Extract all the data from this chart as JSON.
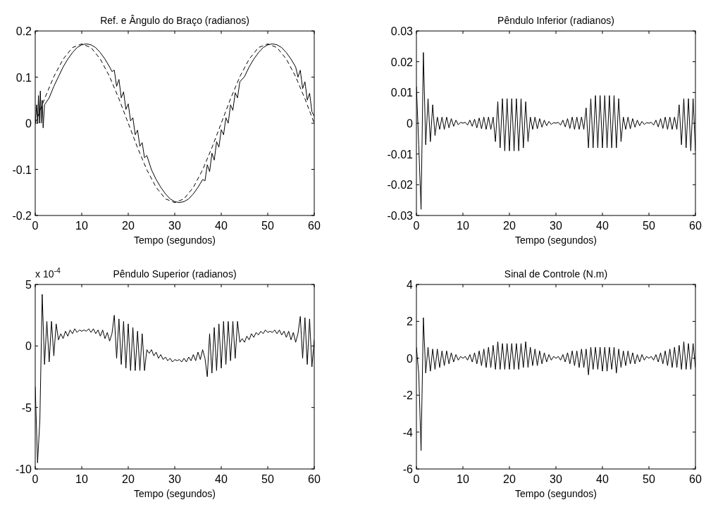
{
  "chart_data": [
    {
      "type": "line",
      "title": "Ref. e Ângulo do Braço (radianos)",
      "xlabel": "Tempo (segundos)",
      "xlim": [
        0,
        60
      ],
      "xticks": [
        0,
        10,
        20,
        30,
        40,
        50,
        60
      ],
      "ylim": [
        -0.2,
        0.2
      ],
      "yticks": [
        -0.2,
        -0.1,
        0,
        0.1,
        0.2
      ],
      "series": [
        {
          "color": "#000000",
          "line_style": "dashed",
          "x": [
            0,
            2,
            4,
            6,
            8,
            10,
            12,
            14,
            16,
            18,
            20,
            22,
            24,
            26,
            28,
            30,
            32,
            34,
            36,
            38,
            40,
            42,
            44,
            46,
            48,
            50,
            52,
            54,
            56,
            58,
            60
          ],
          "values": [
            0,
            0.053,
            0.101,
            0.139,
            0.164,
            0.172,
            0.164,
            0.139,
            0.101,
            0.053,
            0,
            -0.053,
            -0.101,
            -0.139,
            -0.164,
            -0.172,
            -0.164,
            -0.139,
            -0.101,
            -0.053,
            0,
            0.053,
            0.101,
            0.139,
            0.164,
            0.172,
            0.164,
            0.139,
            0.101,
            0.053,
            0
          ]
        },
        {
          "color": "#000000",
          "x": [
            0,
            0.3,
            0.5,
            0.7,
            0.9,
            1.1,
            1.3,
            1.5,
            1.7,
            2,
            3,
            4,
            5,
            6,
            7,
            8,
            9,
            10,
            11,
            12,
            13,
            14,
            15,
            16,
            16.5,
            17,
            17.5,
            18,
            18.5,
            19,
            19.5,
            20,
            20.5,
            21,
            21.5,
            22,
            22.5,
            23,
            23.5,
            24,
            25,
            26,
            27,
            28,
            29,
            30,
            31,
            32,
            33,
            34,
            35,
            36,
            36.5,
            37,
            37.5,
            38,
            38.5,
            39,
            39.5,
            40,
            40.5,
            41,
            41.5,
            42,
            42.5,
            43,
            43.5,
            44,
            45,
            46,
            47,
            48,
            49,
            50,
            51,
            52,
            53,
            54,
            55,
            56,
            56.5,
            57,
            57.5,
            58,
            58.5,
            59,
            59.5,
            60
          ],
          "values": [
            0,
            0.04,
            0,
            0.06,
            0,
            0.07,
            0,
            0.05,
            -0.01,
            0.04,
            0.055,
            0.08,
            0.101,
            0.122,
            0.139,
            0.153,
            0.164,
            0.17,
            0.172,
            0.17,
            0.164,
            0.153,
            0.139,
            0.122,
            0.112,
            0.115,
            0.08,
            0.095,
            0.055,
            0.068,
            0.03,
            0.042,
            0.005,
            0.012,
            -0.025,
            -0.015,
            -0.05,
            -0.042,
            -0.075,
            -0.07,
            -0.101,
            -0.122,
            -0.139,
            -0.153,
            -0.164,
            -0.17,
            -0.172,
            -0.17,
            -0.164,
            -0.153,
            -0.139,
            -0.122,
            -0.125,
            -0.09,
            -0.105,
            -0.065,
            -0.08,
            -0.04,
            -0.052,
            -0.014,
            -0.025,
            0.012,
            0,
            0.04,
            0.028,
            0.066,
            0.055,
            0.09,
            0.101,
            0.122,
            0.139,
            0.153,
            0.164,
            0.17,
            0.172,
            0.17,
            0.164,
            0.153,
            0.139,
            0.122,
            0.1,
            0.115,
            0.075,
            0.09,
            0.05,
            0.065,
            0.025,
            0.015
          ]
        }
      ]
    },
    {
      "type": "line",
      "title": "Pêndulo Inferior (radianos)",
      "xlabel": "Tempo (segundos)",
      "xlim": [
        0,
        60
      ],
      "xticks": [
        0,
        10,
        20,
        30,
        40,
        50,
        60
      ],
      "ylim": [
        -0.03,
        0.03
      ],
      "yticks": [
        -0.03,
        -0.02,
        -0.01,
        0,
        0.01,
        0.02,
        0.03
      ],
      "x": [
        0,
        0.5,
        1,
        1.5,
        2,
        2.5,
        3,
        3.5,
        4,
        4.5,
        5,
        5.5,
        6,
        6.5,
        7,
        7.5,
        8,
        8.5,
        9,
        9.5,
        10,
        10.5,
        11,
        11.5,
        12,
        12.5,
        13,
        13.5,
        14,
        14.5,
        15,
        15.5,
        16,
        16.5,
        17,
        17.5,
        18,
        18.5,
        19,
        19.5,
        20,
        20.5,
        21,
        21.5,
        22,
        22.5,
        23,
        23.5,
        24,
        24.5,
        25,
        25.5,
        26,
        26.5,
        27,
        27.5,
        28,
        28.5,
        29,
        29.5,
        30,
        30.5,
        31,
        31.5,
        32,
        32.5,
        33,
        33.5,
        34,
        34.5,
        35,
        35.5,
        36,
        36.5,
        37,
        37.5,
        38,
        38.5,
        39,
        39.5,
        40,
        40.5,
        41,
        41.5,
        42,
        42.5,
        43,
        43.5,
        44,
        44.5,
        45,
        45.5,
        46,
        46.5,
        47,
        47.5,
        48,
        48.5,
        49,
        49.5,
        50,
        50.5,
        51,
        51.5,
        52,
        52.5,
        53,
        53.5,
        54,
        54.5,
        55,
        55.5,
        56,
        56.5,
        57,
        57.5,
        58,
        58.5,
        59,
        59.5,
        60
      ],
      "series": [
        {
          "color": "#000000",
          "values": [
            0.012,
            -0.007,
            -0.028,
            0.023,
            -0.007,
            0.008,
            -0.006,
            0.006,
            -0.004,
            0.002,
            -0.002,
            0.002,
            -0.002,
            0.002,
            -0.0015,
            0.0015,
            -0.001,
            0.001,
            -0.0005,
            0.0003,
            0,
            0.0003,
            -0.0006,
            0.001,
            -0.001,
            0.0013,
            -0.0015,
            0.0017,
            -0.0018,
            0.002,
            -0.002,
            0.002,
            -0.002,
            0.002,
            -0.006,
            0.007,
            -0.008,
            0.008,
            -0.009,
            0.008,
            -0.009,
            0.008,
            -0.009,
            0.008,
            -0.009,
            0.008,
            -0.008,
            0.007,
            -0.006,
            0.002,
            -0.002,
            0.002,
            -0.0018,
            0.0015,
            -0.0013,
            0.001,
            -0.0008,
            0.0006,
            -0.0004,
            0.0002,
            0,
            0.0003,
            -0.0006,
            0.001,
            -0.0012,
            0.0015,
            -0.0017,
            0.002,
            -0.002,
            0.002,
            -0.002,
            0.002,
            -0.002,
            0.005,
            -0.008,
            0.008,
            -0.008,
            0.009,
            -0.008,
            0.009,
            -0.008,
            0.009,
            -0.008,
            0.009,
            -0.008,
            0.009,
            -0.008,
            0.008,
            -0.006,
            0.002,
            -0.002,
            0.002,
            -0.0018,
            0.0015,
            -0.0013,
            0.001,
            -0.0008,
            0.0006,
            -0.0004,
            0.0002,
            0,
            0.0003,
            -0.0006,
            0.001,
            -0.0012,
            0.0015,
            -0.0017,
            0.002,
            -0.002,
            0.002,
            -0.002,
            0.002,
            -0.002,
            0.006,
            -0.007,
            0.008,
            -0.008,
            0.008,
            -0.009,
            0.008,
            -0.009
          ]
        }
      ]
    },
    {
      "type": "line",
      "title": "Pêndulo Superior (radianos)",
      "xlabel": "Tempo (segundos)",
      "annotations": [
        "x 10$^{-4}$"
      ],
      "xlim": [
        0,
        60
      ],
      "xticks": [
        0,
        10,
        20,
        30,
        40,
        50,
        60
      ],
      "ylim": [
        -10,
        5
      ],
      "yticks": [
        -10,
        -5,
        0,
        5
      ],
      "x": [
        0,
        0.5,
        1,
        1.5,
        2,
        2.5,
        3,
        3.5,
        4,
        4.5,
        5,
        5.5,
        6,
        6.5,
        7,
        7.5,
        8,
        8.5,
        9,
        9.5,
        10,
        10.5,
        11,
        11.5,
        12,
        12.5,
        13,
        13.5,
        14,
        14.5,
        15,
        15.5,
        16,
        16.5,
        17,
        17.5,
        18,
        18.5,
        19,
        19.5,
        20,
        20.5,
        21,
        21.5,
        22,
        22.5,
        23,
        23.5,
        24,
        24.5,
        25,
        25.5,
        26,
        26.5,
        27,
        27.5,
        28,
        28.5,
        29,
        29.5,
        30,
        30.5,
        31,
        31.5,
        32,
        32.5,
        33,
        33.5,
        34,
        34.5,
        35,
        35.5,
        36,
        36.5,
        37,
        37.5,
        38,
        38.5,
        39,
        39.5,
        40,
        40.5,
        41,
        41.5,
        42,
        42.5,
        43,
        43.5,
        44,
        44.5,
        45,
        45.5,
        46,
        46.5,
        47,
        47.5,
        48,
        48.5,
        49,
        49.5,
        50,
        50.5,
        51,
        51.5,
        52,
        52.5,
        53,
        53.5,
        54,
        54.5,
        55,
        55.5,
        56,
        56.5,
        57,
        57.5,
        58,
        58.5,
        59,
        59.5,
        60
      ],
      "series": [
        {
          "color": "#000000",
          "values": [
            -3.3,
            -9.5,
            -6,
            4.2,
            -1.5,
            2,
            -1.3,
            2,
            -0.8,
            1.8,
            0.5,
            1,
            0.6,
            1.2,
            0.8,
            1.3,
            1,
            1.4,
            1.1,
            1.3,
            1.2,
            1.3,
            1.2,
            1.4,
            1.1,
            1.4,
            1,
            1.3,
            0.8,
            1.3,
            0.6,
            1.1,
            0.4,
            1,
            2.5,
            -1,
            2.2,
            -1.5,
            2,
            -1.8,
            1.8,
            -2,
            1.5,
            -2,
            1.2,
            -2,
            1,
            -2,
            -0.3,
            -0.6,
            -0.3,
            -0.8,
            -0.5,
            -1,
            -0.7,
            -1.1,
            -0.9,
            -1.2,
            -1,
            -1.3,
            -1.1,
            -1.2,
            -1.1,
            -1.3,
            -1,
            -1.3,
            -0.9,
            -1.2,
            -0.7,
            -1.2,
            -0.5,
            -1.1,
            -0.3,
            -1,
            -2.5,
            1,
            -2.2,
            1.5,
            -2,
            1.8,
            -1.8,
            2,
            -1.5,
            2,
            -1.2,
            2,
            -1,
            2,
            0.3,
            0.6,
            0.3,
            0.8,
            0.5,
            1,
            0.7,
            1.1,
            0.9,
            1.2,
            1,
            1.3,
            1.1,
            1.2,
            1.1,
            1.3,
            1,
            1.3,
            0.9,
            1.2,
            0.7,
            1.2,
            0.5,
            1.1,
            0.3,
            1,
            2.4,
            -1,
            2.3,
            -1.5,
            2.2,
            -1.7,
            0.5
          ]
        }
      ]
    },
    {
      "type": "line",
      "title": "Sinal de Controle (N.m)",
      "xlabel": "Tempo (segundos)",
      "xlim": [
        0,
        60
      ],
      "xticks": [
        0,
        10,
        20,
        30,
        40,
        50,
        60
      ],
      "ylim": [
        -6,
        4
      ],
      "yticks": [
        -6,
        -4,
        -2,
        0,
        2,
        4
      ],
      "x": [
        0,
        0.5,
        1,
        1.5,
        2,
        2.5,
        3,
        3.5,
        4,
        4.5,
        5,
        5.5,
        6,
        6.5,
        7,
        7.5,
        8,
        8.5,
        9,
        9.5,
        10,
        10.5,
        11,
        11.5,
        12,
        12.5,
        13,
        13.5,
        14,
        14.5,
        15,
        15.5,
        16,
        16.5,
        17,
        17.5,
        18,
        18.5,
        19,
        19.5,
        20,
        20.5,
        21,
        21.5,
        22,
        22.5,
        23,
        23.5,
        24,
        24.5,
        25,
        25.5,
        26,
        26.5,
        27,
        27.5,
        28,
        28.5,
        29,
        29.5,
        30,
        30.5,
        31,
        31.5,
        32,
        32.5,
        33,
        33.5,
        34,
        34.5,
        35,
        35.5,
        36,
        36.5,
        37,
        37.5,
        38,
        38.5,
        39,
        39.5,
        40,
        40.5,
        41,
        41.5,
        42,
        42.5,
        43,
        43.5,
        44,
        44.5,
        45,
        45.5,
        46,
        46.5,
        47,
        47.5,
        48,
        48.5,
        49,
        49.5,
        50,
        50.5,
        51,
        51.5,
        52,
        52.5,
        53,
        53.5,
        54,
        54.5,
        55,
        55.5,
        56,
        56.5,
        57,
        57.5,
        58,
        58.5,
        59,
        59.5,
        60
      ],
      "series": [
        {
          "color": "#000000",
          "values": [
            0.6,
            -0.8,
            -5,
            2.2,
            -0.8,
            0.6,
            -0.7,
            0.5,
            -0.6,
            0.5,
            -0.5,
            0.4,
            -0.4,
            0.4,
            -0.3,
            0.3,
            -0.2,
            0.2,
            -0.1,
            0.1,
            0,
            0.1,
            -0.1,
            0.2,
            -0.2,
            0.3,
            -0.3,
            0.4,
            -0.4,
            0.5,
            -0.5,
            0.6,
            -0.5,
            0.7,
            -0.6,
            0.9,
            -0.6,
            0.8,
            -0.6,
            0.8,
            -0.6,
            0.8,
            -0.6,
            0.8,
            -0.6,
            0.8,
            -0.5,
            0.9,
            -0.5,
            0.6,
            -0.4,
            0.5,
            -0.4,
            0.4,
            -0.3,
            0.3,
            -0.2,
            0.2,
            -0.1,
            0.1,
            0,
            0.1,
            -0.1,
            0.2,
            -0.2,
            0.3,
            -0.3,
            0.4,
            -0.4,
            0.4,
            -0.5,
            0.5,
            -0.5,
            0.5,
            -0.9,
            0.6,
            -0.6,
            0.6,
            -0.6,
            0.6,
            -0.7,
            0.6,
            -0.7,
            0.6,
            -0.6,
            0.6,
            -0.8,
            0.5,
            -0.5,
            0.4,
            -0.4,
            0.4,
            -0.3,
            0.3,
            -0.3,
            0.2,
            -0.2,
            0.2,
            -0.1,
            0.1,
            0,
            0.1,
            -0.1,
            0.2,
            -0.2,
            0.3,
            -0.3,
            0.4,
            -0.4,
            0.5,
            -0.5,
            0.6,
            -0.5,
            0.7,
            -0.6,
            0.9,
            -0.6,
            0.8,
            -0.6,
            0.8,
            -0.5
          ]
        }
      ]
    }
  ]
}
